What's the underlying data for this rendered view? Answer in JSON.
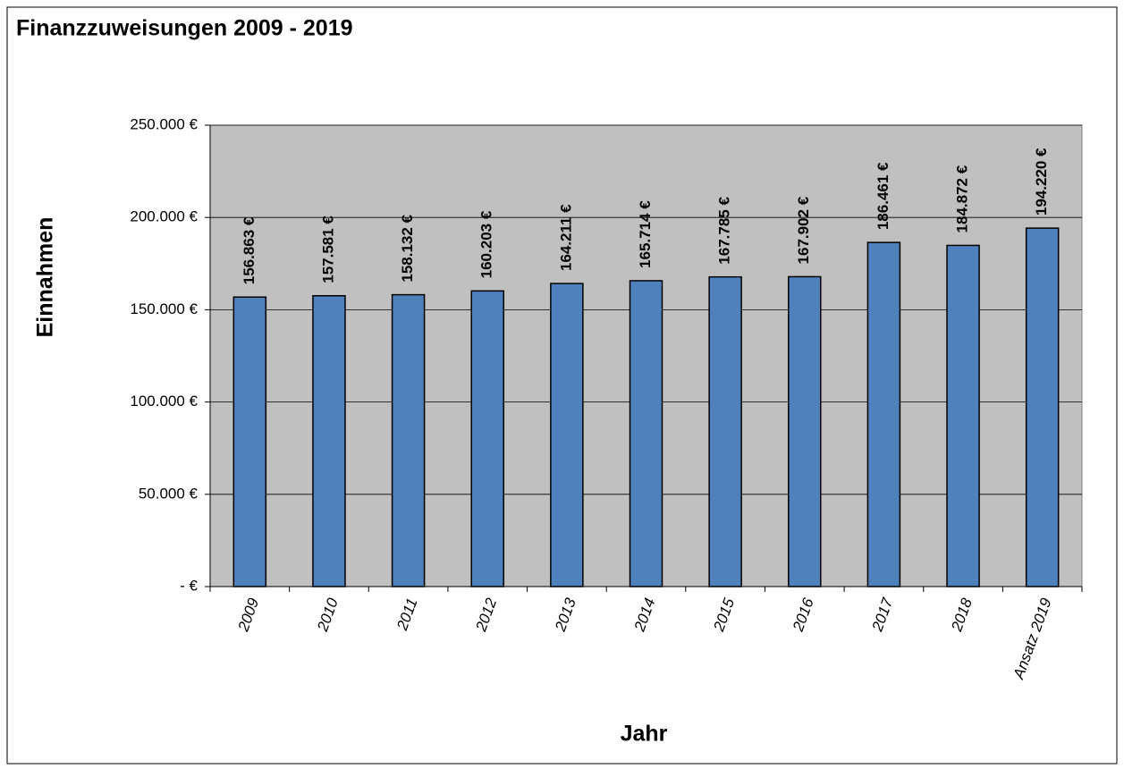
{
  "chart_data": {
    "type": "bar",
    "title": "Finanzzuweisungen 2009 - 2019",
    "x_label": "Jahr",
    "y_label": "Einnahmen",
    "categories": [
      "2009",
      "2010",
      "2011",
      "2012",
      "2013",
      "2014",
      "2015",
      "2016",
      "2017",
      "2018",
      "Ansatz 2019"
    ],
    "values": [
      156863,
      157581,
      158132,
      160203,
      164211,
      165714,
      167785,
      167902,
      186461,
      184872,
      194220
    ],
    "value_labels": [
      "156.863 €",
      "157.581 €",
      "158.132 €",
      "160.203 €",
      "164.211 €",
      "165.714 €",
      "167.785 €",
      "167.902 €",
      "186.461 €",
      "184.872 €",
      "194.220 €"
    ],
    "color": "#4f81bd",
    "ylim": [
      0,
      250000
    ],
    "yticks": [
      {
        "value": 0,
        "label": "-  €"
      },
      {
        "value": 50000,
        "label": "50.000 €"
      },
      {
        "value": 100000,
        "label": "100.000 €"
      },
      {
        "value": 150000,
        "label": "150.000 €"
      },
      {
        "value": 200000,
        "label": "200.000 €"
      },
      {
        "value": 250000,
        "label": "250.000 €"
      }
    ],
    "grid": true
  }
}
